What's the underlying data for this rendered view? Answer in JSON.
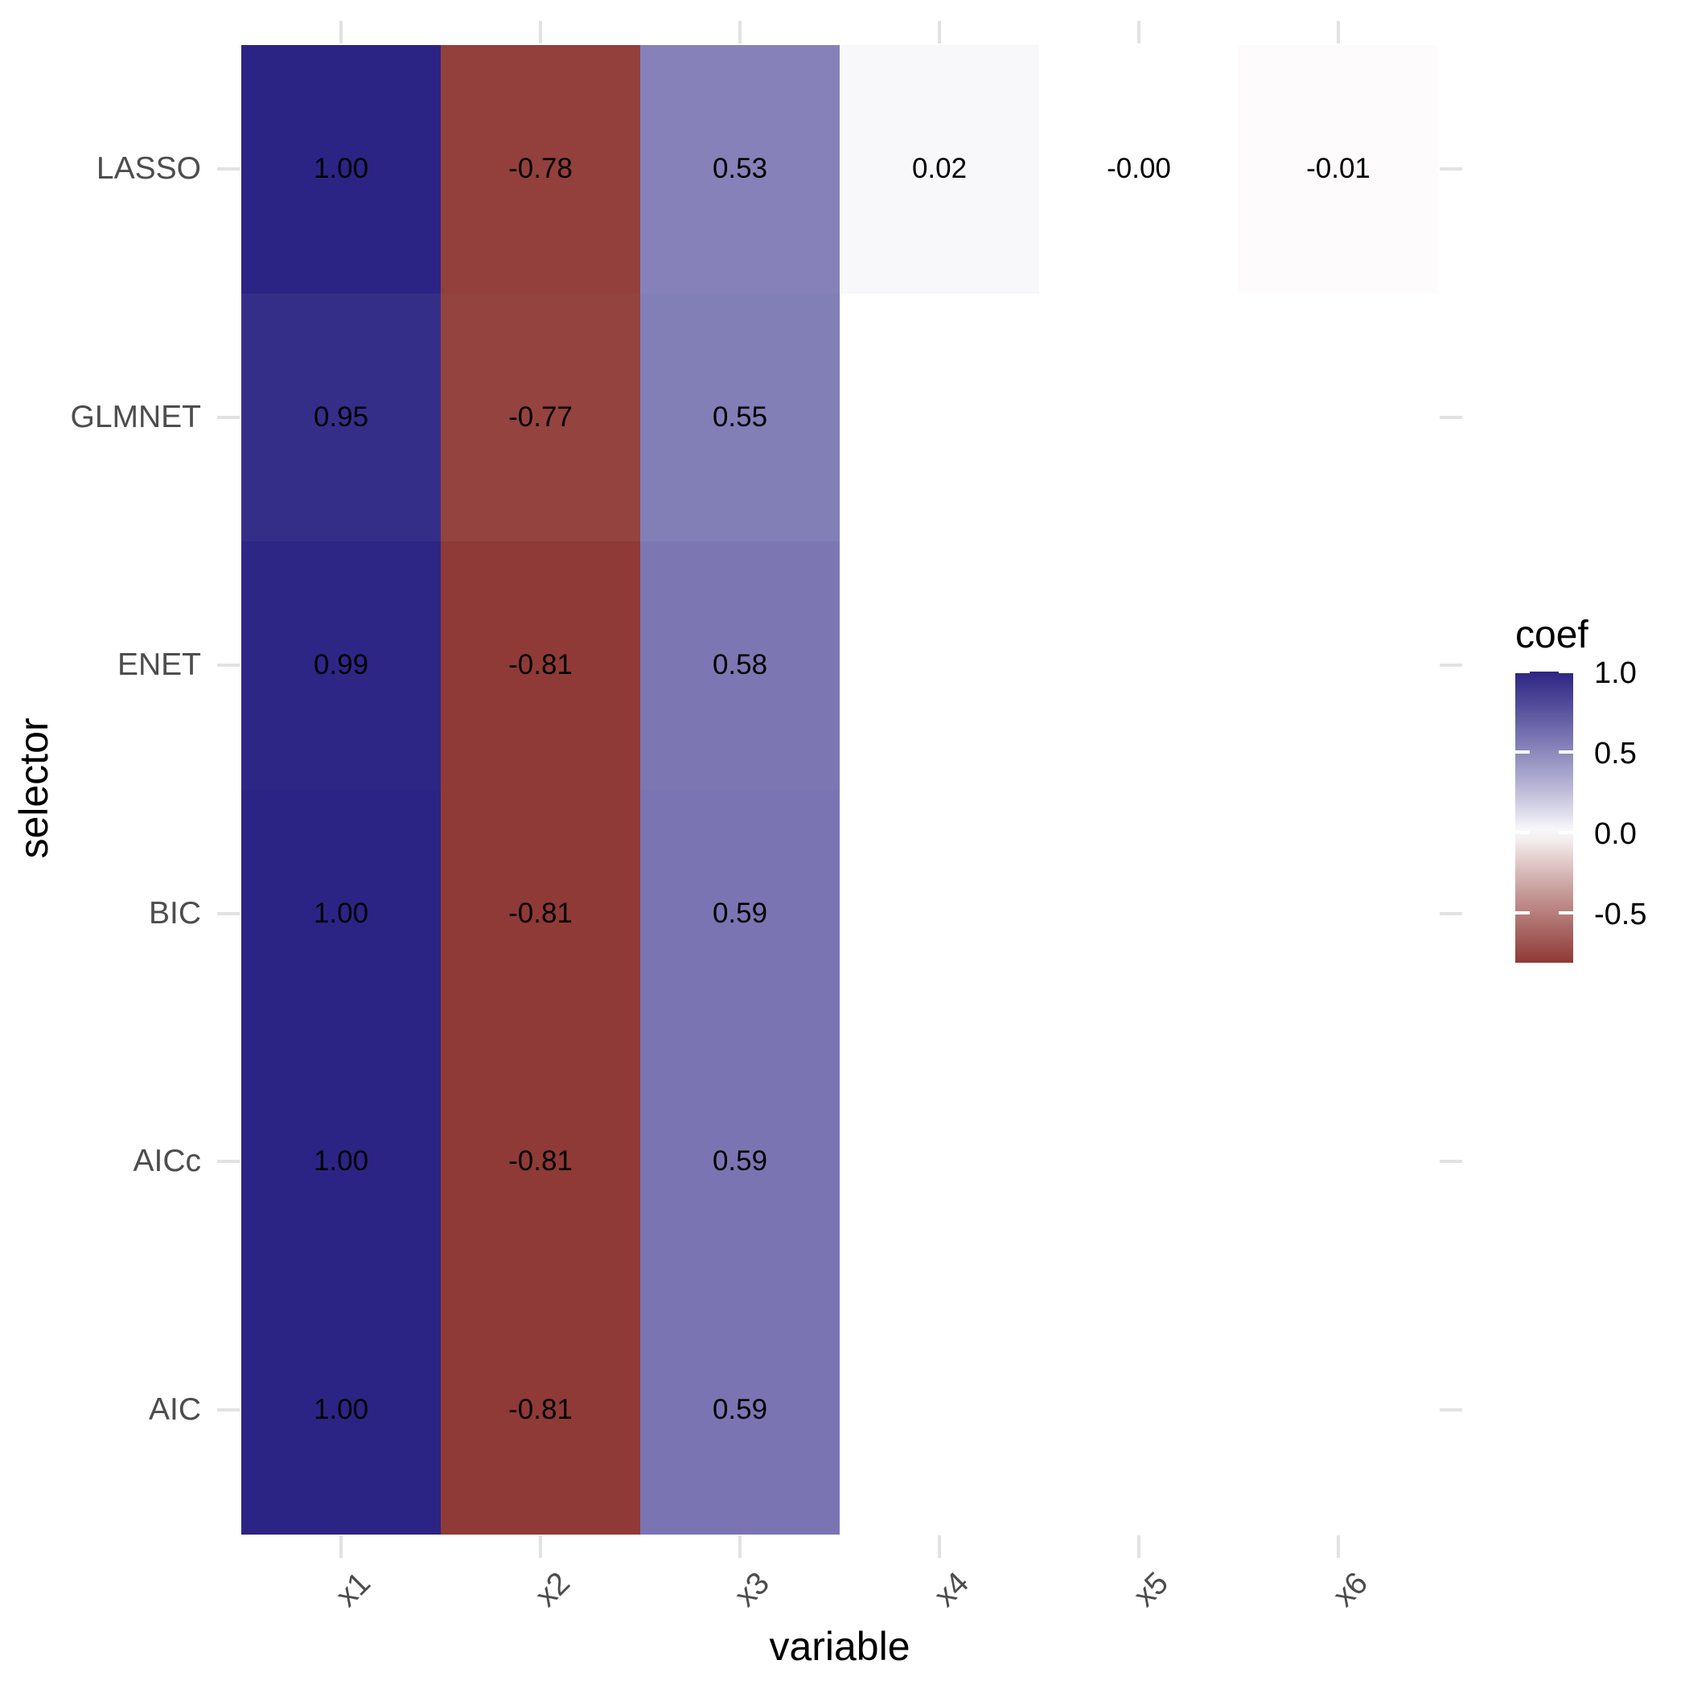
{
  "chart_data": {
    "type": "heatmap",
    "x_axis": {
      "title": "variable",
      "categories": [
        "x1",
        "x2",
        "x3",
        "x4",
        "x5",
        "x6"
      ]
    },
    "y_axis": {
      "title": "selector",
      "categories": [
        "LASSO",
        "GLMNET",
        "ENET",
        "BIC",
        "AICc",
        "AIC"
      ]
    },
    "values": [
      [
        1.0,
        -0.78,
        0.53,
        0.02,
        -0.0,
        -0.01
      ],
      [
        0.95,
        -0.77,
        0.55,
        null,
        null,
        null
      ],
      [
        0.99,
        -0.81,
        0.58,
        null,
        null,
        null
      ],
      [
        1.0,
        -0.81,
        0.59,
        null,
        null,
        null
      ],
      [
        1.0,
        -0.81,
        0.59,
        null,
        null,
        null
      ],
      [
        1.0,
        -0.81,
        0.59,
        null,
        null,
        null
      ]
    ],
    "value_labels": [
      [
        "1.00",
        "-0.78",
        "0.53",
        "0.02",
        "-0.00",
        "-0.01"
      ],
      [
        "0.95",
        "-0.77",
        "0.55",
        null,
        null,
        null
      ],
      [
        "0.99",
        "-0.81",
        "0.58",
        null,
        null,
        null
      ],
      [
        "1.00",
        "-0.81",
        "0.59",
        null,
        null,
        null
      ],
      [
        "1.00",
        "-0.81",
        "0.59",
        null,
        null,
        null
      ],
      [
        "1.00",
        "-0.81",
        "0.59",
        null,
        null,
        null
      ]
    ],
    "legend": {
      "title": "coef",
      "tick_labels": [
        "1.0",
        "0.5",
        "0.0",
        "-0.5"
      ],
      "tick_values": [
        1.0,
        0.5,
        0.0,
        -0.5
      ],
      "min": -0.81,
      "max": 1.0,
      "position": "right"
    },
    "colors": {
      "high": "#2C2484",
      "mid": "#FFFFFF",
      "low": "#8F3A36",
      "axis_text": "#4D4D4D",
      "title_text": "#000000",
      "value_text": "#000000",
      "tick_mark": "#E2E2E2",
      "background": "#FFFFFF"
    },
    "grid": "off",
    "layout": {
      "x_label_angle_deg": 45,
      "ticks_on_all_four_sides": true
    }
  }
}
